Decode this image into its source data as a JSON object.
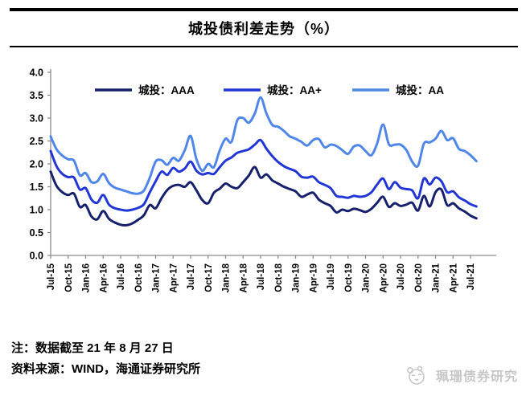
{
  "title": "城投债利差走势（%）",
  "notes": {
    "cutoff": "注：数据截至 21 年 8 月 27 日",
    "source": "资料来源：WIND，海通证券研究所"
  },
  "watermark": {
    "text": "珮珊债券研究",
    "icon": "panda-logo-icon",
    "color": "#c7c7c7"
  },
  "colors": {
    "aaa": "#16206b",
    "aa_plus": "#2136d4",
    "aa": "#4f86e8",
    "axis": "#8c8c8c",
    "tick_text": "#000000"
  },
  "chart_data": {
    "type": "line",
    "title": "城投债利差走势（%）",
    "xlabel": "",
    "ylabel": "",
    "ylim": [
      0.0,
      4.0
    ],
    "ytick_step": 0.5,
    "ytick_labels": [
      "0.0",
      "0.5",
      "1.0",
      "1.5",
      "2.0",
      "2.5",
      "3.0",
      "3.5",
      "4.0"
    ],
    "grid": false,
    "legend_position": "top-center",
    "x_start_month": "Jul-15",
    "x_tick_every_months": 3,
    "x_tick_labels": [
      "Jul-15",
      "Oct-15",
      "Jan-16",
      "Apr-16",
      "Jul-16",
      "Oct-16",
      "Jan-17",
      "Apr-17",
      "Jul-17",
      "Oct-17",
      "Jan-18",
      "Apr-18",
      "Jul-18",
      "Oct-18",
      "Jan-19",
      "Apr-19",
      "Jul-19",
      "Oct-19",
      "Jan-20",
      "Apr-20",
      "Jul-20",
      "Oct-20",
      "Jan-21",
      "Apr-21",
      "Jul-21"
    ],
    "x_label_rotation": -90,
    "series": [
      {
        "name": "城投：AAA",
        "id": "aaa",
        "color": "#16206b",
        "values": [
          1.83,
          1.52,
          1.38,
          1.32,
          1.35,
          1.06,
          1.1,
          0.85,
          0.79,
          0.97,
          0.8,
          0.72,
          0.67,
          0.66,
          0.7,
          0.78,
          0.88,
          1.1,
          1.03,
          1.25,
          1.43,
          1.52,
          1.54,
          1.5,
          1.6,
          1.42,
          1.21,
          1.14,
          1.37,
          1.46,
          1.57,
          1.5,
          1.47,
          1.6,
          1.75,
          1.93,
          1.7,
          1.77,
          1.64,
          1.57,
          1.5,
          1.45,
          1.4,
          1.28,
          1.33,
          1.37,
          1.22,
          1.14,
          1.08,
          0.94,
          1.0,
          0.97,
          1.02,
          0.99,
          0.95,
          1.02,
          1.15,
          1.28,
          1.06,
          1.14,
          1.08,
          1.11,
          1.15,
          0.98,
          1.3,
          1.07,
          1.38,
          1.44,
          1.1,
          1.14,
          1.03,
          0.96,
          0.87,
          0.81
        ]
      },
      {
        "name": "城投：AA+",
        "id": "aa-plus",
        "color": "#2136d4",
        "values": [
          2.28,
          1.95,
          1.78,
          1.71,
          1.7,
          1.44,
          1.47,
          1.22,
          1.15,
          1.32,
          1.11,
          1.03,
          1.0,
          0.98,
          1.0,
          1.04,
          1.12,
          1.38,
          1.62,
          1.83,
          1.76,
          1.91,
          1.83,
          1.9,
          2.05,
          1.85,
          1.77,
          1.8,
          1.78,
          1.93,
          2.07,
          2.14,
          2.24,
          2.28,
          2.32,
          2.42,
          2.52,
          2.33,
          2.17,
          2.04,
          1.95,
          1.89,
          1.84,
          1.72,
          1.7,
          1.72,
          1.6,
          1.54,
          1.47,
          1.3,
          1.28,
          1.26,
          1.3,
          1.28,
          1.3,
          1.38,
          1.55,
          1.68,
          1.45,
          1.6,
          1.48,
          1.45,
          1.42,
          1.25,
          1.68,
          1.55,
          1.7,
          1.62,
          1.38,
          1.4,
          1.27,
          1.2,
          1.12,
          1.07
        ]
      },
      {
        "name": "城投：AA",
        "id": "aa",
        "color": "#4f86e8",
        "values": [
          2.6,
          2.32,
          2.18,
          2.1,
          2.07,
          1.75,
          1.8,
          1.6,
          1.62,
          1.78,
          1.58,
          1.48,
          1.44,
          1.4,
          1.36,
          1.35,
          1.42,
          1.7,
          2.05,
          2.08,
          1.98,
          2.13,
          2.07,
          2.3,
          2.61,
          2.1,
          1.85,
          2.0,
          1.93,
          2.3,
          2.55,
          2.48,
          2.95,
          3.0,
          2.9,
          3.1,
          3.45,
          3.1,
          2.85,
          2.81,
          2.72,
          2.6,
          2.55,
          2.48,
          2.4,
          2.52,
          2.54,
          2.36,
          2.42,
          2.39,
          2.3,
          2.22,
          2.38,
          2.4,
          2.28,
          2.19,
          2.45,
          2.86,
          2.43,
          2.42,
          2.42,
          2.3,
          2.05,
          1.96,
          2.44,
          2.47,
          2.55,
          2.72,
          2.52,
          2.56,
          2.33,
          2.28,
          2.19,
          2.06
        ]
      }
    ]
  }
}
